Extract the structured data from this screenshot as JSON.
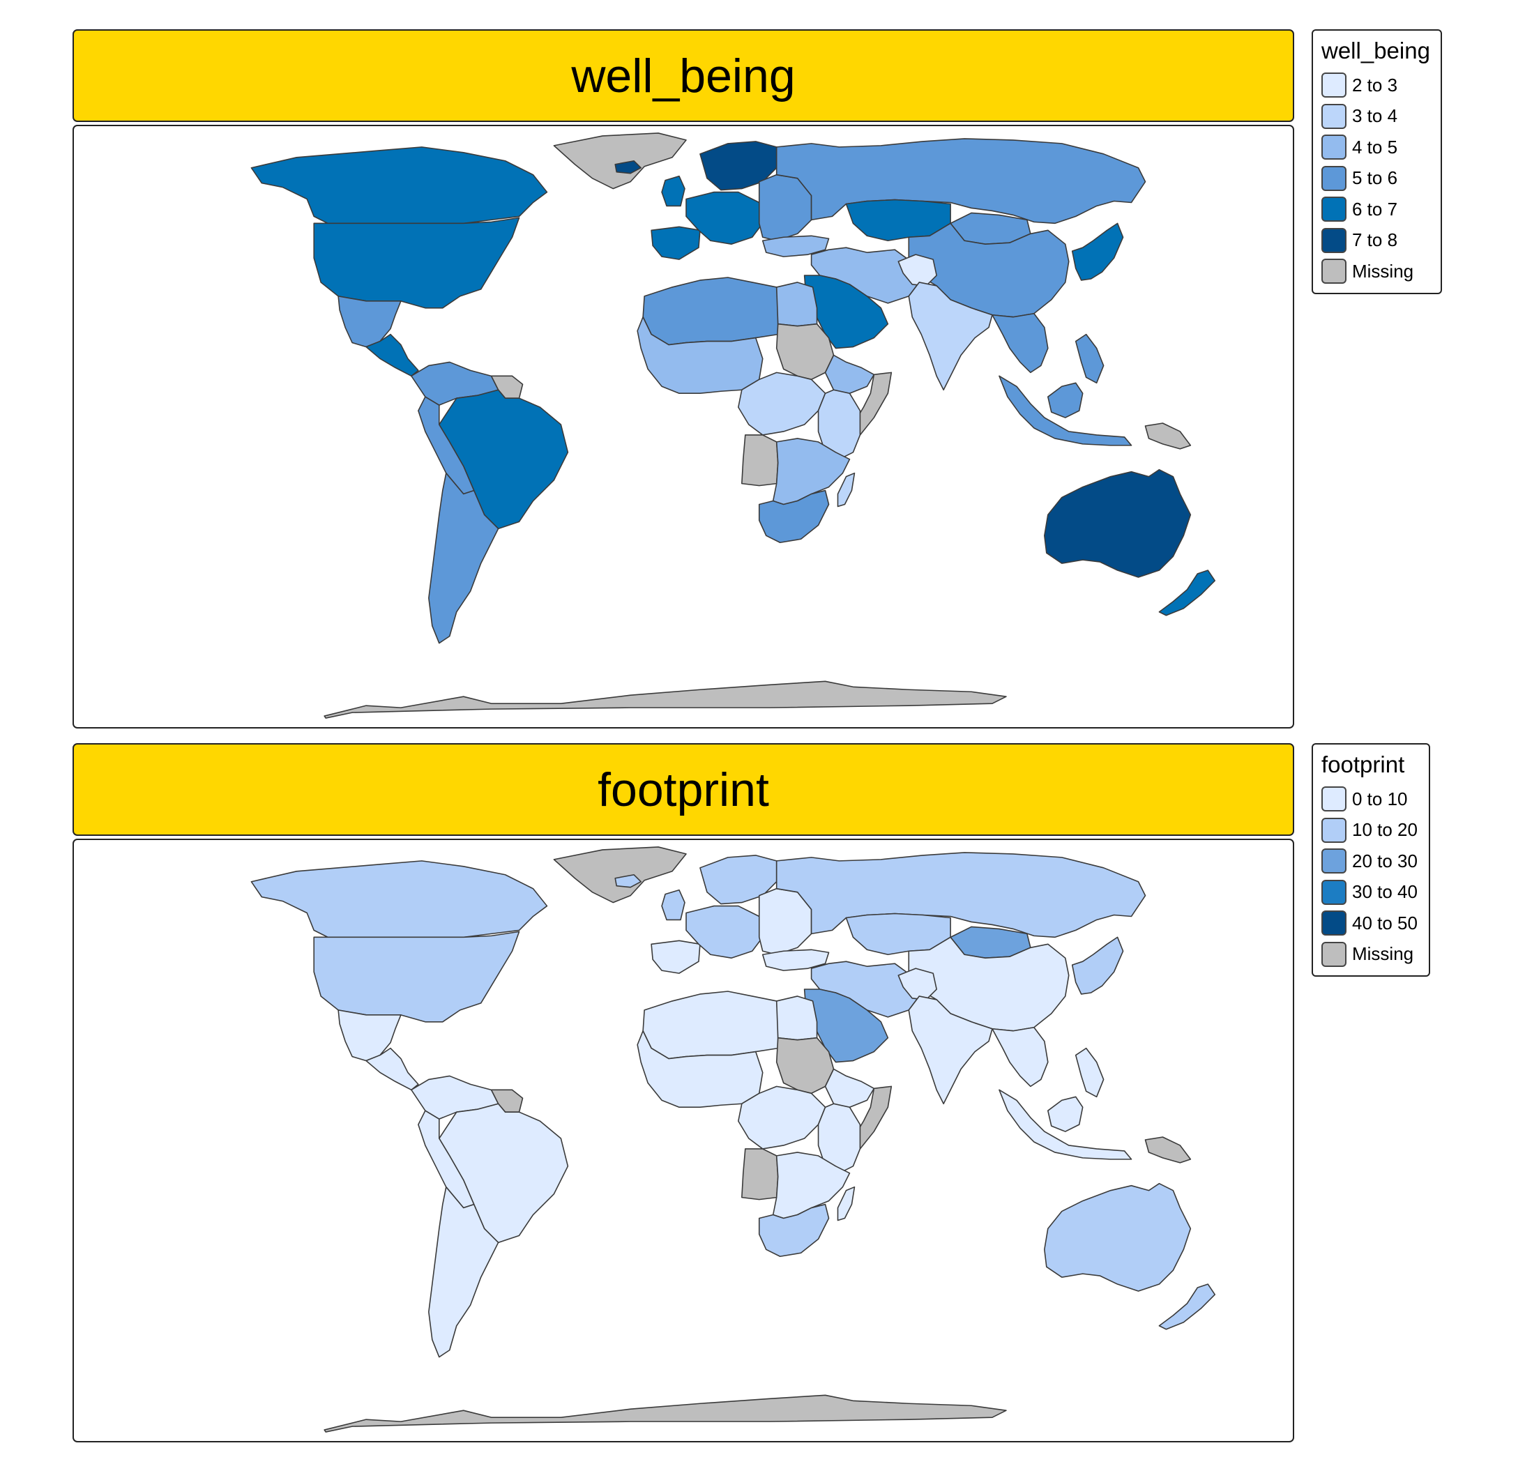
{
  "panels": [
    {
      "title": "well_being",
      "legend": {
        "title": "well_being",
        "items": [
          {
            "label": "2 to 3",
            "color": "#DEEBFF"
          },
          {
            "label": "3 to 4",
            "color": "#BCD6FA"
          },
          {
            "label": "4 to 5",
            "color": "#93BBEE"
          },
          {
            "label": "5 to 6",
            "color": "#5D98D8"
          },
          {
            "label": "6 to 7",
            "color": "#0172B6"
          },
          {
            "label": "7 to 8",
            "color": "#034B87"
          },
          {
            "label": "Missing",
            "color": "#BEBEBE"
          }
        ]
      }
    },
    {
      "title": "footprint",
      "legend": {
        "title": "footprint",
        "items": [
          {
            "label": "0 to 10",
            "color": "#DEEBFF"
          },
          {
            "label": "10 to 20",
            "color": "#B1CEF7"
          },
          {
            "label": "20 to 30",
            "color": "#6DA2DD"
          },
          {
            "label": "30 to 40",
            "color": "#1C7DC3"
          },
          {
            "label": "40 to 50",
            "color": "#034B87"
          },
          {
            "label": "Missing",
            "color": "#BEBEBE"
          }
        ]
      }
    }
  ],
  "regions": {
    "antarctica": {
      "well_being": "Missing",
      "footprint": "Missing"
    },
    "greenland": {
      "well_being": "Missing",
      "footprint": "Missing"
    },
    "canada": {
      "well_being": "6 to 7",
      "footprint": "10 to 20"
    },
    "usa": {
      "well_being": "6 to 7",
      "footprint": "10 to 20"
    },
    "mexico": {
      "well_being": "5 to 6",
      "footprint": "0 to 10"
    },
    "central_america": {
      "well_being": "6 to 7",
      "footprint": "0 to 10"
    },
    "colombia_venezuela": {
      "well_being": "5 to 6",
      "footprint": "0 to 10"
    },
    "guianas": {
      "well_being": "Missing",
      "footprint": "Missing"
    },
    "brazil": {
      "well_being": "6 to 7",
      "footprint": "0 to 10"
    },
    "peru_bolivia": {
      "well_being": "5 to 6",
      "footprint": "0 to 10"
    },
    "chile_argentina": {
      "well_being": "5 to 6",
      "footprint": "0 to 10"
    },
    "iceland": {
      "well_being": "7 to 8",
      "footprint": "10 to 20"
    },
    "uk": {
      "well_being": "6 to 7",
      "footprint": "10 to 20"
    },
    "iberia": {
      "well_being": "6 to 7",
      "footprint": "0 to 10"
    },
    "western_europe": {
      "well_being": "6 to 7",
      "footprint": "10 to 20"
    },
    "scandinavia": {
      "well_being": "7 to 8",
      "footprint": "10 to 20"
    },
    "eastern_europe": {
      "well_being": "5 to 6",
      "footprint": "0 to 10"
    },
    "russia": {
      "well_being": "5 to 6",
      "footprint": "10 to 20"
    },
    "kazakhstan": {
      "well_being": "6 to 7",
      "footprint": "10 to 20"
    },
    "mongolia": {
      "well_being": "5 to 6",
      "footprint": "20 to 30"
    },
    "china": {
      "well_being": "5 to 6",
      "footprint": "0 to 10"
    },
    "korea_japan": {
      "well_being": "6 to 7",
      "footprint": "10 to 20"
    },
    "turkey": {
      "well_being": "4 to 5",
      "footprint": "0 to 10"
    },
    "middle_east": {
      "well_being": "4 to 5",
      "footprint": "10 to 20"
    },
    "arabia": {
      "well_being": "6 to 7",
      "footprint": "20 to 30"
    },
    "afghanistan": {
      "well_being": "2 to 3",
      "footprint": "0 to 10"
    },
    "south_asia": {
      "well_being": "3 to 4",
      "footprint": "0 to 10"
    },
    "southeast_asia": {
      "well_being": "5 to 6",
      "footprint": "0 to 10"
    },
    "indonesia": {
      "well_being": "5 to 6",
      "footprint": "0 to 10"
    },
    "philippines": {
      "well_being": "5 to 6",
      "footprint": "0 to 10"
    },
    "png": {
      "well_being": "Missing",
      "footprint": "Missing"
    },
    "australia": {
      "well_being": "7 to 8",
      "footprint": "10 to 20"
    },
    "new_zealand": {
      "well_being": "6 to 7",
      "footprint": "10 to 20"
    },
    "north_africa": {
      "well_being": "5 to 6",
      "footprint": "0 to 10"
    },
    "egypt": {
      "well_being": "4 to 5",
      "footprint": "0 to 10"
    },
    "west_africa": {
      "well_being": "4 to 5",
      "footprint": "0 to 10"
    },
    "sudan": {
      "well_being": "Missing",
      "footprint": "Missing"
    },
    "ethiopia": {
      "well_being": "4 to 5",
      "footprint": "0 to 10"
    },
    "somalia": {
      "well_being": "Missing",
      "footprint": "Missing"
    },
    "central_africa": {
      "well_being": "3 to 4",
      "footprint": "0 to 10"
    },
    "east_africa": {
      "well_being": "3 to 4",
      "footprint": "0 to 10"
    },
    "angola": {
      "well_being": "Missing",
      "footprint": "Missing"
    },
    "southern_africa": {
      "well_being": "4 to 5",
      "footprint": "0 to 10"
    },
    "south_africa": {
      "well_being": "5 to 6",
      "footprint": "10 to 20"
    },
    "madagascar": {
      "well_being": "3 to 4",
      "footprint": "0 to 10"
    }
  }
}
